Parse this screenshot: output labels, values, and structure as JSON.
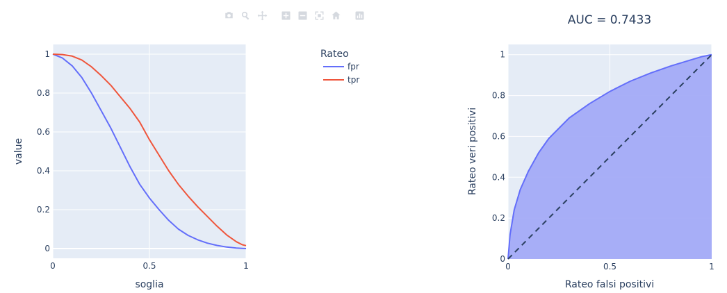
{
  "modebar": {
    "buttons": [
      {
        "name": "camera-icon"
      },
      {
        "name": "zoom-icon"
      },
      {
        "name": "pan-icon"
      },
      {
        "name": "zoom-in-icon"
      },
      {
        "name": "zoom-out-icon"
      },
      {
        "name": "autoscale-icon"
      },
      {
        "name": "reset-axes-icon"
      },
      {
        "name": "plotly-logo-icon"
      }
    ]
  },
  "colors": {
    "fpr": "#636efa",
    "tpr": "#ef553b",
    "plot_bg": "#e5ecf6",
    "roc_fill": "#a3abf7",
    "diagonal": "#2a3f5f"
  },
  "chart_data": [
    {
      "type": "line",
      "title": "",
      "xlabel": "soglia",
      "ylabel": "value",
      "xlim": [
        0,
        1
      ],
      "ylim": [
        -0.05,
        1.05
      ],
      "xticks": [
        "0",
        "0.5",
        "1"
      ],
      "yticks": [
        "0",
        "0.2",
        "0.4",
        "0.6",
        "0.8",
        "1"
      ],
      "legend": {
        "title": "Rateo",
        "placement": "right",
        "entries": [
          "fpr",
          "tpr"
        ]
      },
      "x": [
        0,
        0.05,
        0.1,
        0.15,
        0.2,
        0.25,
        0.3,
        0.35,
        0.4,
        0.45,
        0.5,
        0.55,
        0.6,
        0.65,
        0.7,
        0.75,
        0.8,
        0.85,
        0.9,
        0.95,
        0.98,
        1.0
      ],
      "series": [
        {
          "name": "fpr",
          "values": [
            1.0,
            0.98,
            0.94,
            0.88,
            0.8,
            0.71,
            0.62,
            0.52,
            0.42,
            0.33,
            0.26,
            0.2,
            0.145,
            0.1,
            0.068,
            0.045,
            0.028,
            0.016,
            0.008,
            0.003,
            0.001,
            0.0
          ]
        },
        {
          "name": "tpr",
          "values": [
            1.0,
            0.998,
            0.99,
            0.97,
            0.935,
            0.89,
            0.84,
            0.78,
            0.72,
            0.65,
            0.56,
            0.48,
            0.4,
            0.33,
            0.27,
            0.215,
            0.165,
            0.115,
            0.07,
            0.035,
            0.02,
            0.015
          ]
        }
      ]
    },
    {
      "type": "area",
      "title": "AUC = 0.7433",
      "xlabel": "Rateo falsi positivi",
      "ylabel": "Rateo veri positivi",
      "xlim": [
        0,
        1
      ],
      "ylim": [
        0,
        1.05
      ],
      "xticks": [
        "0",
        "0.5",
        "1"
      ],
      "yticks": [
        "0",
        "0.2",
        "0.4",
        "0.6",
        "0.8",
        "1"
      ],
      "diagonal": true,
      "x": [
        0,
        0.01,
        0.03,
        0.06,
        0.1,
        0.15,
        0.2,
        0.3,
        0.4,
        0.5,
        0.6,
        0.7,
        0.8,
        0.9,
        0.95,
        1.0
      ],
      "y": [
        0,
        0.12,
        0.24,
        0.34,
        0.43,
        0.52,
        0.59,
        0.69,
        0.76,
        0.82,
        0.87,
        0.91,
        0.945,
        0.975,
        0.99,
        1.0
      ]
    }
  ]
}
